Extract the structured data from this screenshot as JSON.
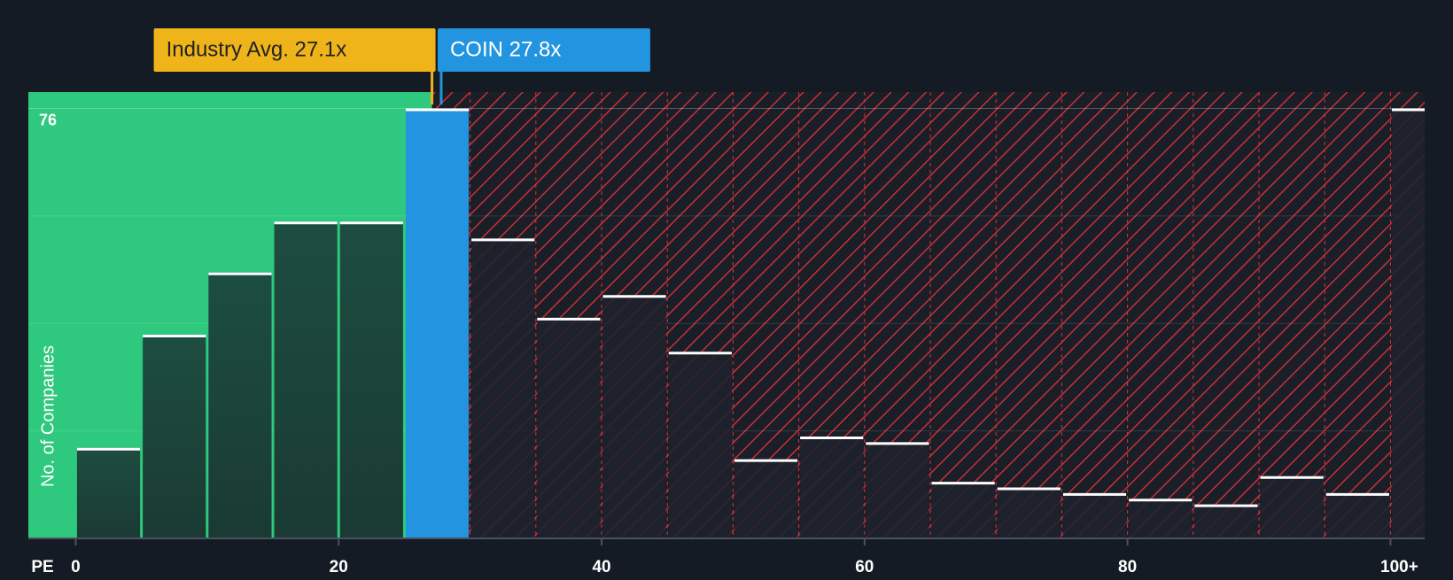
{
  "chart_data": {
    "type": "histogram",
    "x_label": "PE",
    "y_label": "No. of Companies",
    "bins": [
      0,
      5,
      10,
      15,
      20,
      25,
      30,
      35,
      40,
      45,
      50,
      55,
      60,
      65,
      70,
      75,
      80,
      85,
      90,
      95,
      100,
      105
    ],
    "values": [
      16,
      36,
      47,
      56,
      56,
      76,
      53,
      39,
      43,
      33,
      14,
      18,
      17,
      10,
      9,
      8,
      7,
      6,
      11,
      8,
      76
    ],
    "xlim": [
      -3.6,
      102.6
    ],
    "ylim": [
      0,
      76
    ],
    "xticks": [
      0,
      20,
      40,
      60,
      80,
      {
        "value": 100,
        "label": "100+"
      }
    ],
    "yticks": [
      76
    ],
    "markers": [
      {
        "label": "Industry Avg. 27.1x",
        "value": 27.1,
        "color": "#f0b41b"
      },
      {
        "label": "COIN 27.8x",
        "value": 27.8,
        "color": "#2394e0"
      }
    ],
    "highlight_color": "#2394e0",
    "below_color": "#2ec97e",
    "above_color": "#d8323c"
  }
}
